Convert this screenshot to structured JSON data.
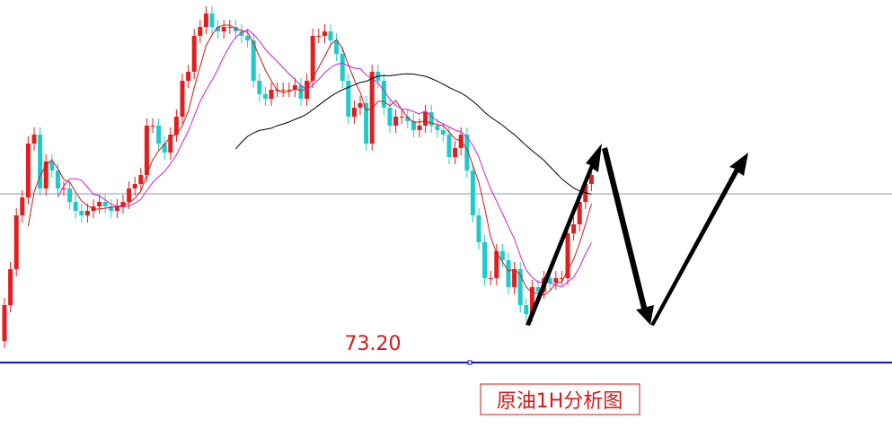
{
  "chart_data": {
    "type": "candlestick",
    "title": "原油1H分析图",
    "ylim": [
      72.37,
      77.24
    ],
    "up_color": "#e41e1e",
    "down_color": "#1ccccc",
    "moving_averages": [
      {
        "period": 5,
        "color": "#d01818"
      },
      {
        "period": 10,
        "color": "#d020d0"
      },
      {
        "period": 40,
        "color": "#000000"
      }
    ],
    "reference_line": {
      "value": 75.08,
      "color": "#8a9aa6"
    },
    "support_line": {
      "value": 73.2,
      "label": "73.20",
      "color": "#1010e0"
    },
    "open": [
      73.44,
      73.84,
      74.24,
      74.84,
      75.04,
      75.64,
      75.74,
      75.14,
      75.44,
      75.34,
      75.14,
      75.14,
      74.99,
      74.89,
      74.84,
      74.89,
      74.94,
      74.99,
      74.94,
      74.89,
      74.94,
      74.99,
      75.14,
      75.19,
      75.29,
      75.84,
      75.84,
      75.64,
      75.54,
      75.74,
      75.94,
      76.34,
      76.44,
      76.84,
      76.94,
      77.09,
      76.94,
      76.89,
      76.94,
      76.94,
      76.89,
      76.84,
      76.79,
      76.34,
      76.19,
      76.14,
      76.24,
      76.24,
      76.24,
      76.24,
      76.29,
      76.14,
      76.34,
      76.84,
      76.84,
      76.89,
      76.79,
      76.64,
      76.34,
      75.94,
      76.04,
      76.09,
      75.64,
      76.44,
      76.34,
      76.04,
      75.84,
      75.94,
      75.94,
      75.89,
      75.79,
      75.84,
      75.99,
      75.84,
      75.79,
      75.74,
      75.49,
      75.59,
      75.74,
      75.34,
      74.84,
      74.54,
      74.14,
      74.14,
      74.44,
      74.34,
      74.04,
      74.24,
      73.84,
      73.74,
      74.04,
      73.99,
      74.14,
      74.09,
      74.14,
      74.14,
      74.64,
      74.74,
      74.99,
      75.19
    ],
    "high": [
      73.92,
      74.32,
      74.92,
      75.12,
      75.72,
      75.82,
      75.82,
      75.52,
      75.52,
      75.42,
      75.22,
      75.22,
      75.07,
      74.97,
      74.97,
      75.02,
      75.07,
      75.07,
      75.02,
      75.02,
      75.07,
      75.22,
      75.27,
      75.37,
      75.92,
      75.92,
      75.92,
      75.72,
      75.82,
      76.02,
      76.42,
      76.52,
      76.92,
      77.02,
      77.17,
      77.17,
      77.02,
      77.02,
      77.02,
      77.02,
      76.97,
      76.92,
      76.87,
      76.42,
      76.27,
      76.32,
      76.32,
      76.32,
      76.32,
      76.37,
      76.37,
      76.42,
      76.92,
      76.92,
      76.97,
      76.97,
      76.87,
      76.72,
      76.42,
      76.12,
      76.17,
      76.17,
      76.52,
      76.52,
      76.42,
      76.12,
      76.02,
      76.02,
      76.02,
      75.97,
      75.92,
      76.07,
      76.07,
      75.92,
      75.87,
      75.82,
      75.67,
      75.82,
      75.82,
      75.42,
      74.92,
      74.62,
      74.22,
      74.52,
      74.52,
      74.42,
      74.32,
      74.32,
      73.92,
      74.12,
      74.12,
      74.22,
      74.22,
      74.22,
      74.22,
      74.72,
      74.82,
      75.07,
      75.27,
      75.37
    ],
    "low": [
      73.36,
      73.76,
      74.16,
      74.76,
      74.96,
      75.56,
      75.06,
      75.06,
      75.26,
      75.06,
      75.06,
      74.91,
      74.81,
      74.76,
      74.76,
      74.81,
      74.86,
      74.86,
      74.81,
      74.81,
      74.86,
      74.91,
      75.06,
      75.11,
      75.21,
      75.76,
      75.56,
      75.46,
      75.46,
      75.66,
      75.86,
      76.26,
      76.36,
      76.76,
      76.86,
      76.86,
      76.81,
      76.81,
      76.86,
      76.81,
      76.76,
      76.71,
      76.26,
      76.11,
      76.06,
      76.06,
      76.16,
      76.16,
      76.16,
      76.16,
      76.06,
      76.06,
      76.26,
      76.76,
      76.76,
      76.71,
      76.56,
      76.26,
      75.86,
      75.86,
      75.96,
      75.56,
      75.56,
      76.26,
      75.96,
      75.76,
      75.76,
      75.86,
      75.81,
      75.71,
      75.71,
      75.76,
      75.76,
      75.71,
      75.66,
      75.41,
      75.41,
      75.51,
      75.26,
      74.76,
      74.46,
      74.06,
      74.06,
      74.06,
      74.26,
      73.96,
      73.96,
      73.76,
      73.66,
      73.66,
      73.91,
      73.91,
      74.01,
      74.01,
      74.06,
      74.06,
      74.56,
      74.66,
      74.91,
      75.11
    ],
    "close": [
      73.84,
      74.24,
      74.84,
      75.04,
      75.64,
      75.74,
      75.14,
      75.44,
      75.34,
      75.14,
      75.14,
      74.99,
      74.89,
      74.84,
      74.89,
      74.94,
      74.99,
      74.94,
      74.89,
      74.94,
      74.99,
      75.14,
      75.19,
      75.29,
      75.84,
      75.84,
      75.64,
      75.54,
      75.74,
      75.94,
      76.34,
      76.44,
      76.84,
      76.94,
      77.09,
      76.94,
      76.89,
      76.94,
      76.94,
      76.89,
      76.84,
      76.79,
      76.34,
      76.19,
      76.14,
      76.24,
      76.24,
      76.24,
      76.24,
      76.29,
      76.14,
      76.34,
      76.84,
      76.84,
      76.89,
      76.79,
      76.64,
      76.34,
      75.94,
      76.04,
      76.09,
      75.64,
      76.44,
      76.34,
      76.04,
      75.84,
      75.94,
      75.94,
      75.89,
      75.79,
      75.84,
      75.99,
      75.84,
      75.79,
      75.74,
      75.49,
      75.59,
      75.74,
      75.34,
      74.84,
      74.54,
      74.14,
      74.14,
      74.44,
      74.34,
      74.04,
      74.24,
      73.84,
      73.74,
      74.04,
      73.99,
      74.14,
      74.09,
      74.14,
      74.14,
      74.64,
      74.74,
      74.99,
      75.19,
      75.29
    ]
  }
}
